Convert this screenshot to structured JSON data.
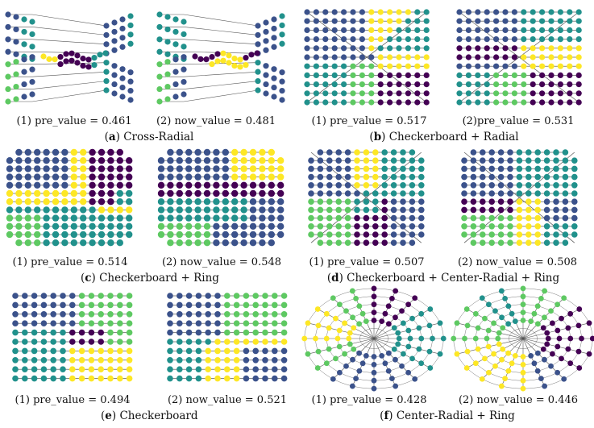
{
  "palette": {
    "purple": "#440154",
    "indigo": "#3b528b",
    "teal": "#21918c",
    "green": "#5ec962",
    "yellow": "#fde725",
    "edge": "#555555"
  },
  "panels": [
    {
      "letter": "a",
      "title": "Cross-Radial",
      "graphs": [
        {
          "caption": "(1) pre_value = 0.461",
          "pattern": "cross_pre"
        },
        {
          "caption": "(2) now_value = 0.481",
          "pattern": "cross_now"
        }
      ]
    },
    {
      "letter": "b",
      "title": "Checkerboard + Radial",
      "graphs": [
        {
          "caption": "(1) pre_value = 0.517",
          "pattern": "cbrad_pre"
        },
        {
          "caption": "(2)pre_value = 0.531",
          "pattern": "cbrad_now"
        }
      ]
    },
    {
      "letter": "c",
      "title": "Checkerboard + Ring",
      "graphs": [
        {
          "caption": "(1) pre_value = 0.514",
          "pattern": "cbring_pre"
        },
        {
          "caption": "(2) now_value = 0.548",
          "pattern": "cbring_now"
        }
      ]
    },
    {
      "letter": "d",
      "title": "Checkerboard + Center-Radial + Ring",
      "graphs": [
        {
          "caption": "(1) pre_value = 0.507",
          "pattern": "cbcr_pre"
        },
        {
          "caption": "(2) now_value = 0.508",
          "pattern": "cbcr_now"
        }
      ]
    },
    {
      "letter": "e",
      "title": "Checkerboard",
      "graphs": [
        {
          "caption": "(1) pre_value = 0.494",
          "pattern": "cb_pre"
        },
        {
          "caption": "(2) now_value = 0.521",
          "pattern": "cb_now"
        }
      ]
    },
    {
      "letter": "f",
      "title": "Center-Radial + Ring",
      "graphs": [
        {
          "caption": "(1) pre_value = 0.428",
          "pattern": "cr_pre"
        },
        {
          "caption": "(2) now_value = 0.446",
          "pattern": "cr_now"
        }
      ]
    }
  ]
}
